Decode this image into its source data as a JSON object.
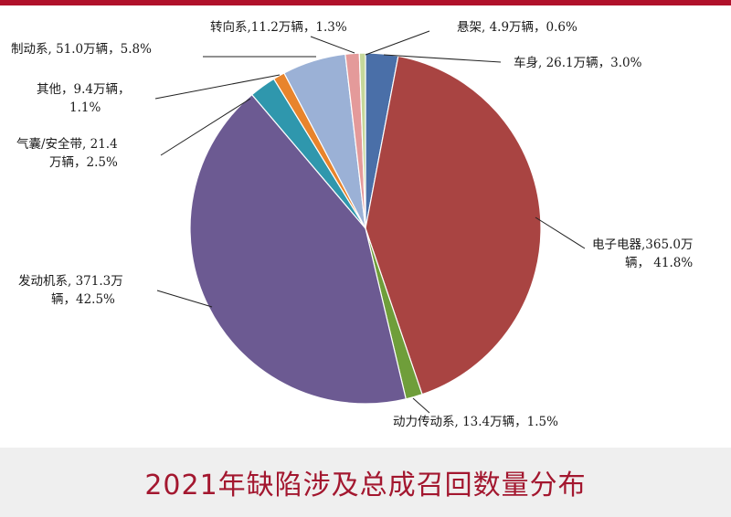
{
  "caption": "2021年缺陷涉及总成召回数量分布",
  "chart_data": {
    "type": "pie",
    "title": "",
    "start_angle_deg": 90,
    "direction": "clockwise",
    "slices": [
      {
        "name": "车身",
        "value": 26.1,
        "percent": 3.0,
        "color": "#4a6fa8",
        "label_lines": [
          "车身, 26.1万辆，3.0%"
        ]
      },
      {
        "name": "电子电器",
        "value": 365.0,
        "percent": 41.8,
        "color": "#a94442",
        "label_lines": [
          "电子电器,365.0万",
          "辆， 41.8%"
        ]
      },
      {
        "name": "动力传动系",
        "value": 13.4,
        "percent": 1.5,
        "color": "#6f9e3a",
        "label_lines": [
          "动力传动系, 13.4万辆，1.5%"
        ]
      },
      {
        "name": "发动机系",
        "value": 371.3,
        "percent": 42.5,
        "color": "#6c5a92",
        "label_lines": [
          "发动机系, 371.3万",
          "辆，42.5%"
        ]
      },
      {
        "name": "气囊/安全带",
        "value": 21.4,
        "percent": 2.5,
        "color": "#2f97ad",
        "label_lines": [
          "气囊/安全带, 21.4",
          "万辆，2.5%"
        ]
      },
      {
        "name": "其他",
        "value": 9.4,
        "percent": 1.1,
        "color": "#e8842c",
        "label_lines": [
          "其他，9.4万辆，",
          "1.1%"
        ]
      },
      {
        "name": "制动系",
        "value": 51.0,
        "percent": 5.8,
        "color": "#9bb1d6",
        "label_lines": [
          "制动系, 51.0万辆，5.8%"
        ]
      },
      {
        "name": "转向系",
        "value": 11.2,
        "percent": 1.3,
        "color": "#e49a9a",
        "label_lines": [
          "转向系,11.2万辆，1.3%"
        ]
      },
      {
        "name": "悬架",
        "value": 4.9,
        "percent": 0.6,
        "color": "#c5d79a",
        "label_lines": [
          "悬架, 4.9万辆，0.6%"
        ]
      }
    ]
  }
}
